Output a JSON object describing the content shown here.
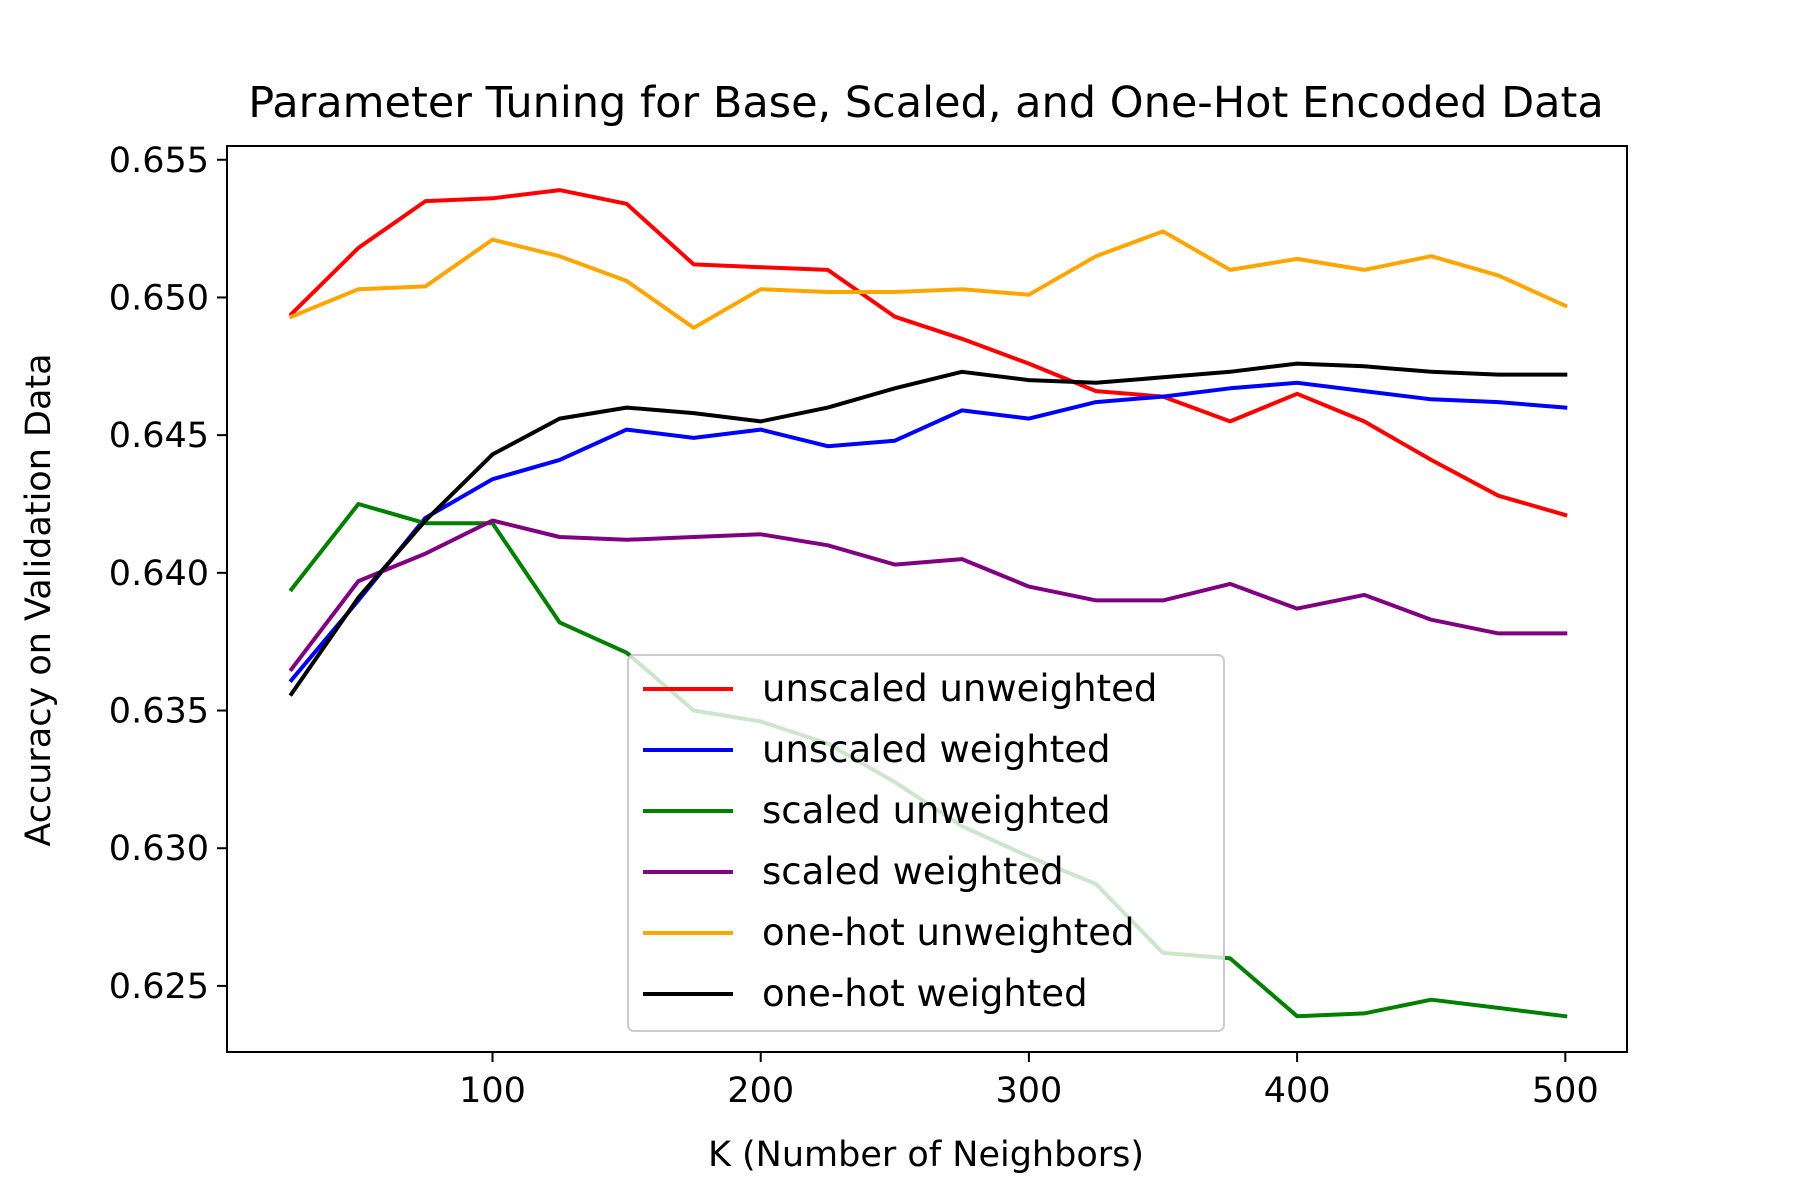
{
  "chart_data": {
    "type": "line",
    "title": "Parameter Tuning for Base, Scaled, and One-Hot Encoded Data",
    "xlabel": "K (Number of Neighbors)",
    "ylabel": "Accuracy on Validation Data",
    "xlim": [
      1,
      523
    ],
    "ylim": [
      0.6226,
      0.6555
    ],
    "xticks": [
      100,
      200,
      300,
      400,
      500
    ],
    "xtick_labels": [
      "100",
      "200",
      "300",
      "400",
      "500"
    ],
    "yticks": [
      0.625,
      0.63,
      0.635,
      0.64,
      0.645,
      0.65,
      0.655
    ],
    "ytick_labels": [
      "0.625",
      "0.630",
      "0.635",
      "0.640",
      "0.645",
      "0.650",
      "0.655"
    ],
    "grid": false,
    "legend_position": "lower-center",
    "x": [
      25,
      50,
      75,
      100,
      125,
      150,
      175,
      200,
      225,
      250,
      275,
      300,
      325,
      350,
      375,
      400,
      425,
      450,
      475,
      500
    ],
    "series": [
      {
        "name": "unscaled unweighted",
        "color": "#ff0000",
        "values": [
          0.6494,
          0.6518,
          0.6535,
          0.6536,
          0.6539,
          0.6534,
          0.6512,
          0.6511,
          0.651,
          0.6493,
          0.6485,
          0.6476,
          0.6466,
          0.6464,
          0.6455,
          0.6465,
          0.6455,
          0.6441,
          0.6428,
          0.6421
        ]
      },
      {
        "name": "unscaled weighted",
        "color": "#0000ff",
        "values": [
          0.6361,
          0.639,
          0.642,
          0.6434,
          0.6441,
          0.6452,
          0.6449,
          0.6452,
          0.6446,
          0.6448,
          0.6459,
          0.6456,
          0.6462,
          0.6464,
          0.6467,
          0.6469,
          0.6466,
          0.6463,
          0.6462,
          0.646
        ]
      },
      {
        "name": "scaled unweighted",
        "color": "#008000",
        "values": [
          0.6394,
          0.6425,
          0.6418,
          0.6418,
          0.6382,
          0.6371,
          0.635,
          0.6346,
          0.6338,
          0.6324,
          0.6308,
          0.6297,
          0.6287,
          0.6262,
          0.626,
          0.6239,
          0.624,
          0.6245,
          0.6242,
          0.6239
        ]
      },
      {
        "name": "scaled weighted",
        "color": "#800080",
        "values": [
          0.6365,
          0.6397,
          0.6407,
          0.6419,
          0.6413,
          0.6412,
          0.6413,
          0.6414,
          0.641,
          0.6403,
          0.6405,
          0.6395,
          0.639,
          0.639,
          0.6396,
          0.6387,
          0.6392,
          0.6383,
          0.6378,
          0.6378
        ]
      },
      {
        "name": "one-hot unweighted",
        "color": "#ffa500",
        "values": [
          0.6493,
          0.6503,
          0.6504,
          0.6521,
          0.6515,
          0.6506,
          0.6489,
          0.6503,
          0.6502,
          0.6502,
          0.6503,
          0.6501,
          0.6515,
          0.6524,
          0.651,
          0.6514,
          0.651,
          0.6515,
          0.6508,
          0.6497
        ]
      },
      {
        "name": "one-hot weighted",
        "color": "#000000",
        "values": [
          0.6356,
          0.6391,
          0.6419,
          0.6443,
          0.6456,
          0.646,
          0.6458,
          0.6455,
          0.646,
          0.6467,
          0.6473,
          0.647,
          0.6469,
          0.6471,
          0.6473,
          0.6476,
          0.6475,
          0.6473,
          0.6472,
          0.6472
        ]
      }
    ]
  }
}
